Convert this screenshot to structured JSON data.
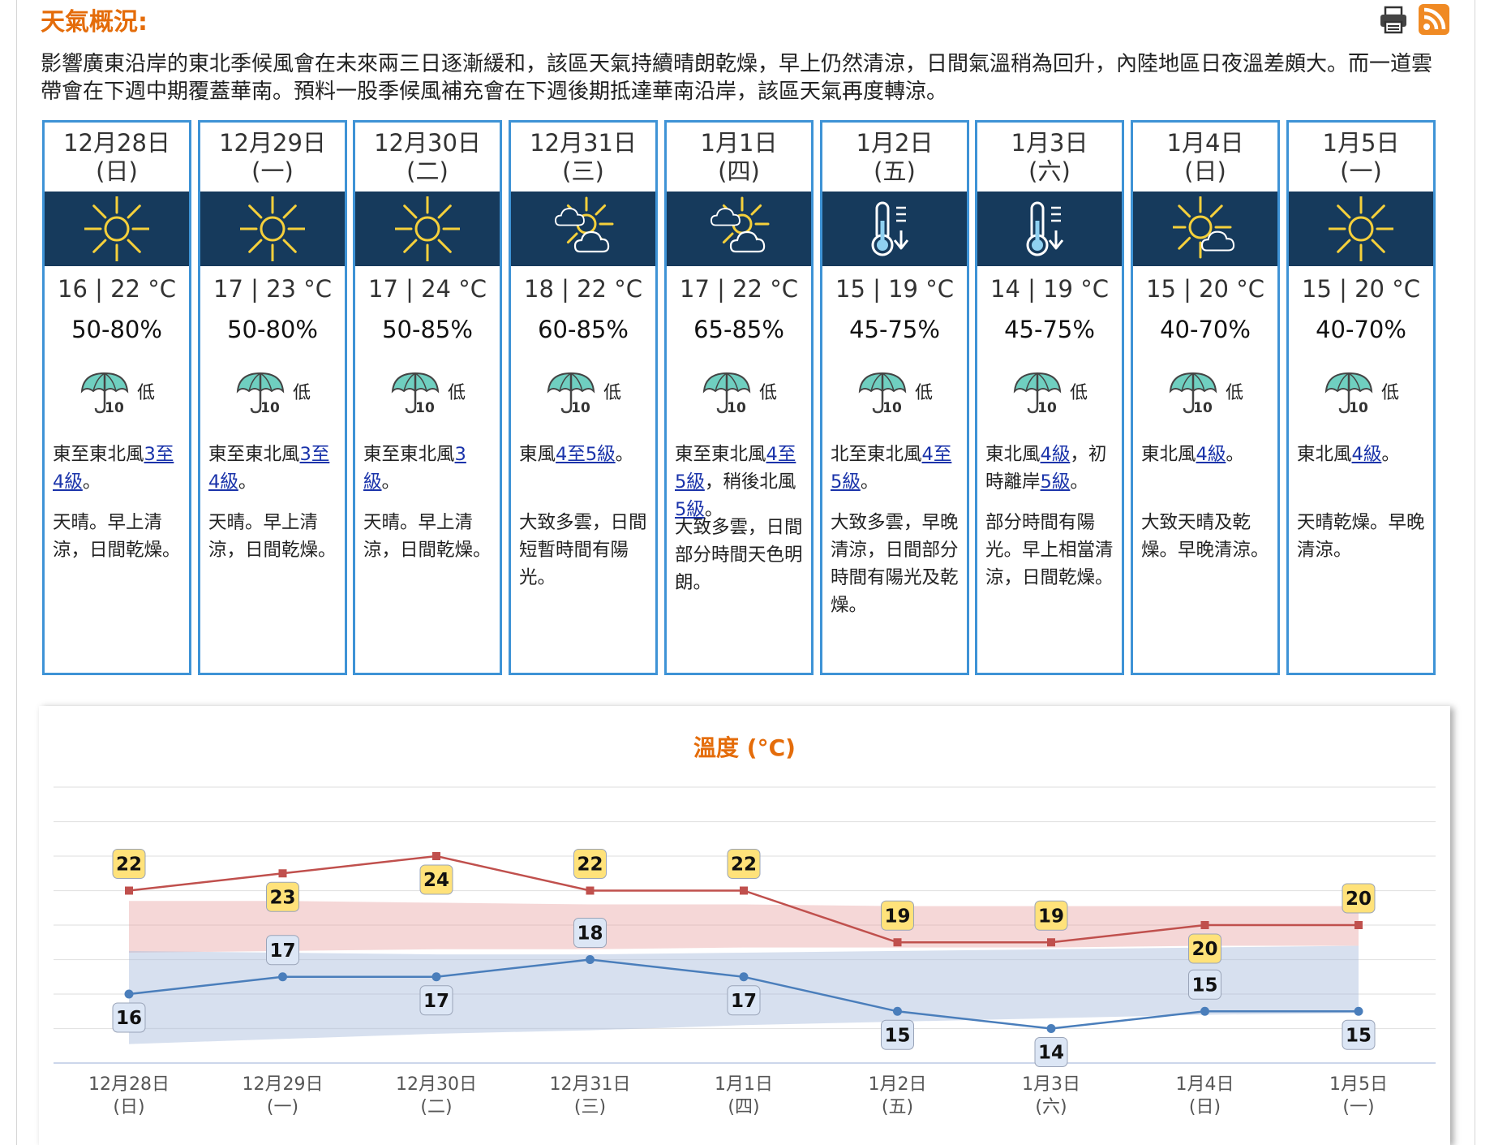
{
  "header": {
    "title": "天氣概況:",
    "print_icon": "print-icon",
    "rss_icon": "rss-icon"
  },
  "summary": "影響廣東沿岸的東北季候風會在未來兩三日逐漸緩和，該區天氣持續晴朗乾燥，早上仍然清涼，日間氣溫稍為回升，內陸地區日夜溫差頗大。而一道雲帶會在下週中期覆蓋華南。預料一股季候風補充會在下週後期抵達華南沿岸，該區天氣再度轉涼。",
  "colors": {
    "accent": "#e46c0a",
    "card_border": "#3e93d6",
    "icon_band": "#163a5c",
    "max_line": "#c0504d",
    "min_line": "#4a7ebb",
    "label_max": "#ffe27a",
    "label_min": "#dce6f5",
    "link": "#1a33aa"
  },
  "forecast": [
    {
      "date": "12月28日",
      "dow": "(日)",
      "icon": "sunny-icon",
      "temp": "16 | 22 °C",
      "rh": "50-80%",
      "psr_level": "低",
      "psr_badge": "10",
      "wind": [
        {
          "t": "東至東北風"
        },
        {
          "t": "3至4級",
          "link": true
        },
        {
          "t": "。"
        }
      ],
      "weather": "天晴。早上清涼，日間乾燥。"
    },
    {
      "date": "12月29日",
      "dow": "(一)",
      "icon": "sunny-icon",
      "temp": "17 | 23 °C",
      "rh": "50-80%",
      "psr_level": "低",
      "psr_badge": "10",
      "wind": [
        {
          "t": "東至東北風"
        },
        {
          "t": "3至4級",
          "link": true
        },
        {
          "t": "。"
        }
      ],
      "weather": "天晴。早上清涼，日間乾燥。"
    },
    {
      "date": "12月30日",
      "dow": "(二)",
      "icon": "sunny-icon",
      "temp": "17 | 24 °C",
      "rh": "50-85%",
      "psr_level": "低",
      "psr_badge": "10",
      "wind": [
        {
          "t": "東至東北風"
        },
        {
          "t": "3級",
          "link": true
        },
        {
          "t": "。"
        }
      ],
      "weather": "天晴。早上清涼，日間乾燥。"
    },
    {
      "date": "12月31日",
      "dow": "(三)",
      "icon": "sunny-periods-icon",
      "temp": "18 | 22 °C",
      "rh": "60-85%",
      "psr_level": "低",
      "psr_badge": "10",
      "wind": [
        {
          "t": "東風"
        },
        {
          "t": "4至5級",
          "link": true
        },
        {
          "t": "。"
        }
      ],
      "weather": "大致多雲，日間短暫時間有陽光。"
    },
    {
      "date": "1月1日",
      "dow": "(四)",
      "icon": "sunny-periods-icon",
      "temp": "17 | 22 °C",
      "rh": "65-85%",
      "psr_level": "低",
      "psr_badge": "10",
      "wind": [
        {
          "t": "東至東北風"
        },
        {
          "t": "4至5級",
          "link": true
        },
        {
          "t": "，稍後北風"
        },
        {
          "t": "5級",
          "link": true
        },
        {
          "t": "。"
        }
      ],
      "weather": "大致多雲，日間部分時間天色明朗。"
    },
    {
      "date": "1月2日",
      "dow": "(五)",
      "icon": "cool-icon",
      "temp": "15 | 19 °C",
      "rh": "45-75%",
      "psr_level": "低",
      "psr_badge": "10",
      "wind": [
        {
          "t": "北至東北風"
        },
        {
          "t": "4至5級",
          "link": true
        },
        {
          "t": "。"
        }
      ],
      "weather": "大致多雲，早晚清涼，日間部分時間有陽光及乾燥。"
    },
    {
      "date": "1月3日",
      "dow": "(六)",
      "icon": "cool-icon",
      "temp": "14 | 19 °C",
      "rh": "45-75%",
      "psr_level": "低",
      "psr_badge": "10",
      "wind": [
        {
          "t": "東北風"
        },
        {
          "t": "4級",
          "link": true
        },
        {
          "t": "，初時離岸"
        },
        {
          "t": "5級",
          "link": true
        },
        {
          "t": "。"
        }
      ],
      "weather": "部分時間有陽光。早上相當清涼，日間乾燥。"
    },
    {
      "date": "1月4日",
      "dow": "(日)",
      "icon": "sunny-intervals-icon",
      "temp": "15 | 20 °C",
      "rh": "40-70%",
      "psr_level": "低",
      "psr_badge": "10",
      "wind": [
        {
          "t": "東北風"
        },
        {
          "t": "4級",
          "link": true
        },
        {
          "t": "。"
        }
      ],
      "weather": "大致天晴及乾燥。早晚清涼。"
    },
    {
      "date": "1月5日",
      "dow": "(一)",
      "icon": "sunny-icon",
      "temp": "15 | 20 °C",
      "rh": "40-70%",
      "psr_level": "低",
      "psr_badge": "10",
      "wind": [
        {
          "t": "東北風"
        },
        {
          "t": "4級",
          "link": true
        },
        {
          "t": "。"
        }
      ],
      "weather": "天晴乾燥。早晚清涼。"
    }
  ],
  "chart_data": {
    "type": "line",
    "title": "溫度 (°C)",
    "categories": [
      "12月28日",
      "12月29日",
      "12月30日",
      "12月31日",
      "1月1日",
      "1月2日",
      "1月3日",
      "1月4日",
      "1月5日"
    ],
    "category_sublabels": [
      "(日)",
      "(一)",
      "(二)",
      "(三)",
      "(四)",
      "(五)",
      "(六)",
      "(日)",
      "(一)"
    ],
    "series": [
      {
        "values": [
          22,
          23,
          24,
          22,
          22,
          19,
          19,
          20,
          20
        ]
      },
      {
        "values": [
          16,
          17,
          17,
          18,
          17,
          15,
          14,
          15,
          15
        ]
      }
    ],
    "bands": [
      {
        "lower": [
          18.4,
          18.5,
          18.6,
          18.6,
          18.7,
          18.7,
          18.7,
          18.8,
          18.8
        ],
        "upper": [
          21.4,
          21.4,
          21.3,
          21.2,
          21.2,
          21.1,
          21.1,
          21.1,
          21.1
        ]
      },
      {
        "lower": [
          13.1,
          13.4,
          13.7,
          13.9,
          14.2,
          14.4,
          14.6,
          14.8,
          14.9
        ],
        "upper": [
          18.5,
          18.4,
          18.3,
          18.3,
          18.4,
          18.5,
          18.6,
          18.7,
          18.8
        ]
      }
    ],
    "ylim": [
      12,
      28
    ],
    "grid": true,
    "legend": "none"
  }
}
